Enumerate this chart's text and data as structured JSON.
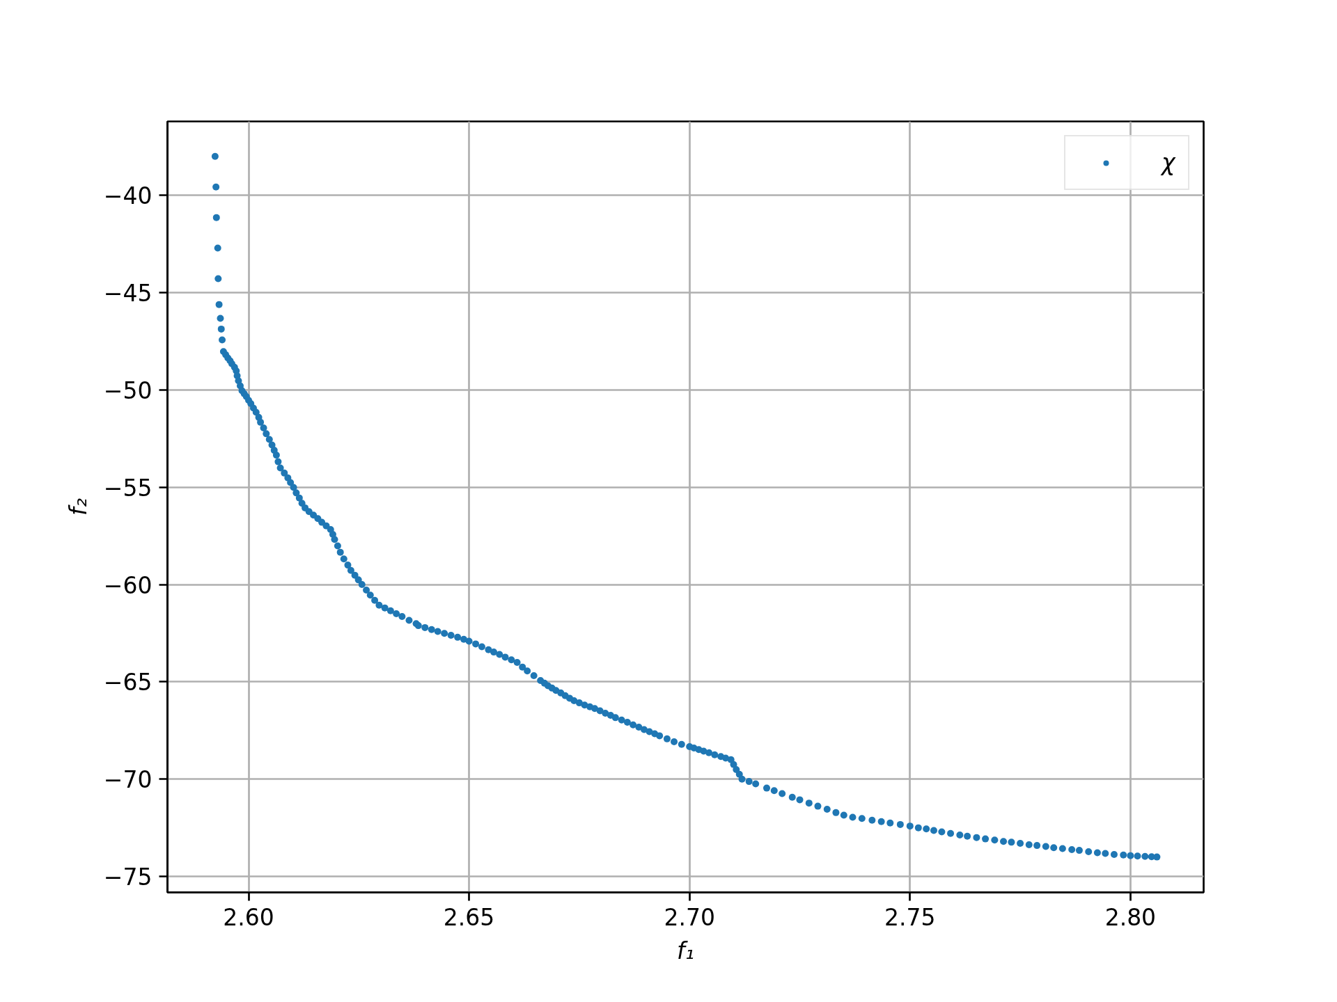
{
  "chart_data": {
    "type": "scatter",
    "xlabel": "f₁",
    "ylabel": "f₂",
    "xlim": [
      2.5816,
      2.8166
    ],
    "ylim": [
      -75.82,
      -36.2
    ],
    "xticks": [
      {
        "value": 2.6,
        "label": "2.60"
      },
      {
        "value": 2.65,
        "label": "2.65"
      },
      {
        "value": 2.7,
        "label": "2.70"
      },
      {
        "value": 2.75,
        "label": "2.75"
      },
      {
        "value": 2.8,
        "label": "2.80"
      }
    ],
    "yticks": [
      {
        "value": -40,
        "label": "−40"
      },
      {
        "value": -45,
        "label": "−45"
      },
      {
        "value": -50,
        "label": "−50"
      },
      {
        "value": -55,
        "label": "−55"
      },
      {
        "value": -60,
        "label": "−60"
      },
      {
        "value": -65,
        "label": "−65"
      },
      {
        "value": -70,
        "label": "−70"
      },
      {
        "value": -75,
        "label": "−75"
      }
    ],
    "grid": true,
    "legend": "top right",
    "marker": "circle",
    "series": [
      {
        "name": "χ",
        "color": "#1f77b4",
        "x": [
          2.5924,
          2.5926,
          2.5927,
          2.593,
          2.5931,
          2.5933,
          2.5936,
          2.5938,
          2.594,
          2.5943,
          2.5948,
          2.5953,
          2.5958,
          2.5962,
          2.5968,
          2.5972,
          2.5974,
          2.5977,
          2.5981,
          2.5985,
          2.599,
          2.5995,
          2.6,
          2.6005,
          2.6011,
          2.6017,
          2.6023,
          2.6027,
          2.6034,
          2.604,
          2.6047,
          2.6053,
          2.6058,
          2.6063,
          2.6067,
          2.6072,
          2.6081,
          2.6089,
          2.6095,
          2.6102,
          2.6108,
          2.6115,
          2.6121,
          2.6128,
          2.6137,
          2.6147,
          2.6157,
          2.6166,
          2.6176,
          2.6186,
          2.6191,
          2.6195,
          2.6202,
          2.6208,
          2.6216,
          2.6225,
          2.6232,
          2.6241,
          2.6249,
          2.6257,
          2.6267,
          2.6276,
          2.6286,
          2.6296,
          2.6309,
          2.6322,
          2.6335,
          2.6348,
          2.6364,
          2.638,
          2.6385,
          2.64,
          2.6415,
          2.6429,
          2.6444,
          2.6459,
          2.6474,
          2.6488,
          2.65,
          2.6515,
          2.6529,
          2.6544,
          2.6556,
          2.6569,
          2.6582,
          2.6596,
          2.6609,
          2.6621,
          2.6632,
          2.6647,
          2.6662,
          2.6671,
          2.6679,
          2.6688,
          2.6697,
          2.6708,
          2.6718,
          2.6728,
          2.6738,
          2.675,
          2.6762,
          2.6774,
          2.6785,
          2.6797,
          2.6809,
          2.6821,
          2.6832,
          2.6846,
          2.6859,
          2.6872,
          2.6885,
          2.6897,
          2.6909,
          2.6921,
          2.6932,
          2.6949,
          2.6965,
          2.6982,
          2.7,
          2.701,
          2.7021,
          2.7032,
          2.7044,
          2.7057,
          2.7071,
          2.7082,
          2.7094,
          2.71,
          2.7106,
          2.7113,
          2.7119,
          2.7135,
          2.715,
          2.7175,
          2.7192,
          2.721,
          2.7233,
          2.725,
          2.7271,
          2.7291,
          2.7312,
          2.7332,
          2.735,
          2.737,
          2.7391,
          2.7414,
          2.7435,
          2.7455,
          2.7478,
          2.75,
          2.7519,
          2.7537,
          2.7554,
          2.7572,
          2.7592,
          2.7613,
          2.763,
          2.7651,
          2.7671,
          2.7692,
          2.7712,
          2.773,
          2.775,
          2.777,
          2.7788,
          2.7808,
          2.7826,
          2.7846,
          2.7867,
          2.7884,
          2.7905,
          2.7925,
          2.7943,
          2.7963,
          2.7984,
          2.8,
          2.8016,
          2.8033,
          2.8048,
          2.806
        ],
        "values": [
          -38.0,
          -39.57,
          -41.14,
          -42.71,
          -44.28,
          -45.61,
          -46.32,
          -46.87,
          -47.43,
          -48.03,
          -48.19,
          -48.36,
          -48.5,
          -48.65,
          -48.83,
          -49.02,
          -49.27,
          -49.53,
          -49.79,
          -50.04,
          -50.19,
          -50.34,
          -50.53,
          -50.7,
          -50.93,
          -51.15,
          -51.41,
          -51.66,
          -51.95,
          -52.25,
          -52.54,
          -52.83,
          -53.1,
          -53.35,
          -53.69,
          -54.01,
          -54.27,
          -54.52,
          -54.76,
          -55.01,
          -55.29,
          -55.55,
          -55.82,
          -56.06,
          -56.25,
          -56.43,
          -56.61,
          -56.8,
          -56.98,
          -57.17,
          -57.42,
          -57.68,
          -58.01,
          -58.34,
          -58.68,
          -59.0,
          -59.27,
          -59.52,
          -59.76,
          -60.0,
          -60.28,
          -60.54,
          -60.81,
          -61.06,
          -61.2,
          -61.35,
          -61.5,
          -61.64,
          -61.84,
          -62.01,
          -62.11,
          -62.21,
          -62.31,
          -62.41,
          -62.51,
          -62.61,
          -62.71,
          -62.81,
          -62.91,
          -63.05,
          -63.2,
          -63.35,
          -63.47,
          -63.59,
          -63.73,
          -63.87,
          -64.0,
          -64.24,
          -64.44,
          -64.68,
          -64.93,
          -65.07,
          -65.2,
          -65.32,
          -65.44,
          -65.57,
          -65.71,
          -65.84,
          -65.97,
          -66.08,
          -66.19,
          -66.28,
          -66.37,
          -66.49,
          -66.61,
          -66.72,
          -66.84,
          -66.96,
          -67.08,
          -67.21,
          -67.33,
          -67.45,
          -67.56,
          -67.67,
          -67.77,
          -67.93,
          -68.08,
          -68.21,
          -68.33,
          -68.4,
          -68.48,
          -68.56,
          -68.64,
          -68.75,
          -68.84,
          -68.92,
          -69.0,
          -69.25,
          -69.51,
          -69.75,
          -70.0,
          -70.12,
          -70.24,
          -70.46,
          -70.59,
          -70.74,
          -70.93,
          -71.06,
          -71.23,
          -71.39,
          -71.55,
          -71.72,
          -71.85,
          -71.96,
          -72.02,
          -72.11,
          -72.18,
          -72.25,
          -72.33,
          -72.41,
          -72.5,
          -72.56,
          -72.64,
          -72.71,
          -72.79,
          -72.87,
          -72.93,
          -73.0,
          -73.07,
          -73.13,
          -73.2,
          -73.24,
          -73.3,
          -73.37,
          -73.41,
          -73.46,
          -73.52,
          -73.57,
          -73.62,
          -73.66,
          -73.73,
          -73.78,
          -73.82,
          -73.87,
          -73.9,
          -73.93,
          -73.95,
          -73.97,
          -73.99,
          -74.0
        ]
      }
    ]
  }
}
